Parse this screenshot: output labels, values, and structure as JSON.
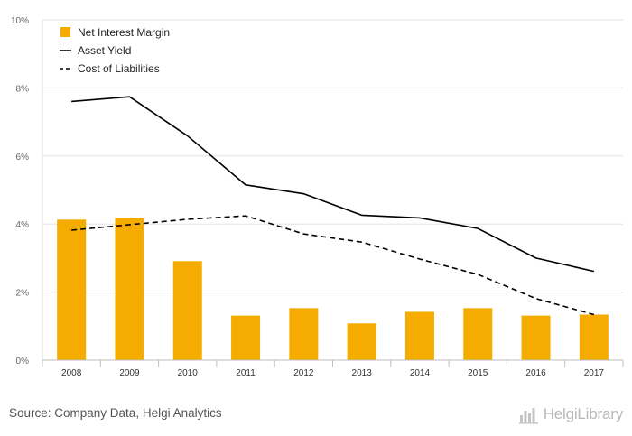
{
  "chart_data": {
    "type": "bar",
    "categories": [
      "2008",
      "2009",
      "2010",
      "2011",
      "2012",
      "2013",
      "2014",
      "2015",
      "2016",
      "2017"
    ],
    "y_ticks": [
      "0%",
      "2%",
      "4%",
      "6%",
      "8%",
      "10%"
    ],
    "ylim": [
      0,
      10
    ],
    "grid": "horizontal",
    "legend_position": "top-left",
    "series": [
      {
        "name": "Net Interest Margin",
        "kind": "bar",
        "color": "#f5ab00",
        "values": [
          4.13,
          4.18,
          2.91,
          1.31,
          1.53,
          1.08,
          1.42,
          1.53,
          1.31,
          1.34
        ]
      },
      {
        "name": "Asset Yield",
        "kind": "line",
        "style": "solid",
        "color": "#000000",
        "values": [
          7.6,
          7.74,
          6.59,
          5.15,
          4.89,
          4.26,
          4.18,
          3.87,
          3.0,
          2.61
        ]
      },
      {
        "name": "Cost of Liabilities",
        "kind": "line",
        "style": "dashed",
        "color": "#000000",
        "values": [
          3.82,
          3.98,
          4.14,
          4.24,
          3.71,
          3.47,
          2.97,
          2.52,
          1.81,
          1.34
        ]
      }
    ]
  },
  "footer": {
    "source": "Source: Company Data, Helgi Analytics",
    "logo_text": "HelgiLibrary"
  },
  "icons": {
    "logo_mark": "bar-chart-icon"
  }
}
